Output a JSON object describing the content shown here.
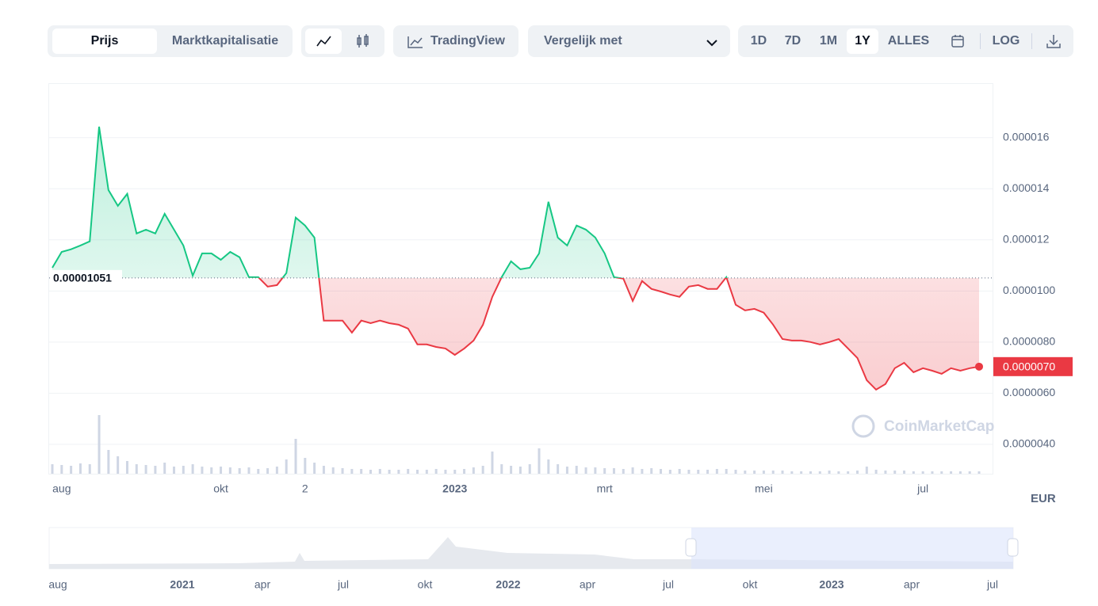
{
  "toolbar": {
    "tabs": [
      "Prijs",
      "Marktkapitalisatie"
    ],
    "tradingview": "TradingView",
    "compare": "Vergelijk met",
    "ranges": [
      "1D",
      "7D",
      "1M",
      "1Y",
      "ALLES"
    ],
    "log": "LOG"
  },
  "chart_data": {
    "type": "line",
    "categories": [
      null,
      "aug",
      null,
      null,
      null,
      null,
      null,
      null,
      null,
      null,
      null,
      null,
      null,
      null,
      null,
      null,
      null,
      null,
      "okt",
      null,
      null,
      null,
      null,
      null,
      null,
      null,
      null,
      "2",
      null,
      null,
      null,
      null,
      null,
      null,
      null,
      null,
      null,
      null,
      null,
      null,
      null,
      null,
      null,
      "2023",
      null,
      null,
      null,
      null,
      null,
      null,
      null,
      null,
      null,
      null,
      null,
      null,
      null,
      null,
      null,
      "mrt",
      null,
      null,
      null,
      null,
      null,
      null,
      null,
      null,
      null,
      null,
      null,
      null,
      null,
      null,
      null,
      null,
      "mei",
      null,
      null,
      null,
      null,
      null,
      null,
      null,
      null,
      null,
      null,
      null,
      null,
      null,
      null,
      null,
      null,
      "jul",
      null,
      null,
      null,
      null,
      null,
      null
    ],
    "values": [
      1.091e-05,
      1.153e-05,
      1.163e-05,
      1.178e-05,
      1.194e-05,
      1.643e-05,
      1.395e-05,
      1.333e-05,
      1.38e-05,
      1.225e-05,
      1.24e-05,
      1.225e-05,
      1.302e-05,
      1.24e-05,
      1.178e-05,
      1.06e-05,
      1.147e-05,
      1.147e-05,
      1.122e-05,
      1.153e-05,
      1.132e-05,
      1.054e-05,
      1.054e-05,
      1.017e-05,
      1.023e-05,
      1.07e-05,
      1.287e-05,
      1.256e-05,
      1.209e-05,
      8.84e-06,
      8.84e-06,
      8.84e-06,
      8.37e-06,
      8.84e-06,
      8.74e-06,
      8.84e-06,
      8.74e-06,
      8.68e-06,
      8.53e-06,
      7.91e-06,
      7.91e-06,
      7.81e-06,
      7.75e-06,
      7.5e-06,
      7.75e-06,
      8.06e-06,
      8.68e-06,
      9.77e-06,
      1.054e-05,
      1.116e-05,
      1.085e-05,
      1.091e-05,
      1.147e-05,
      1.349e-05,
      1.209e-05,
      1.178e-05,
      1.256e-05,
      1.24e-05,
      1.209e-05,
      1.147e-05,
      1.054e-05,
      1.048e-05,
      9.61e-06,
      1.039e-05,
      1.008e-05,
      9.98e-06,
      9.86e-06,
      9.77e-06,
      1.017e-05,
      1.023e-05,
      1.008e-05,
      1.008e-05,
      1.054e-05,
      9.46e-06,
      9.24e-06,
      9.3e-06,
      9.15e-06,
      8.68e-06,
      8.12e-06,
      8.06e-06,
      8.06e-06,
      8e-06,
      7.91e-06,
      8e-06,
      8.12e-06,
      7.75e-06,
      7.38e-06,
      6.51e-06,
      6.14e-06,
      6.36e-06,
      6.98e-06,
      7.19e-06,
      6.82e-06,
      6.98e-06,
      6.88e-06,
      6.76e-06,
      6.98e-06,
      6.88e-06,
      6.98e-06,
      7.04e-06
    ],
    "colors": {
      "up": "#16c784",
      "down": "#ea3943"
    },
    "baseline": 1.051e-05,
    "current": {
      "value": 7.04e-06,
      "label": "0.0000070"
    },
    "unit": "EUR",
    "ylim": [
      2.85e-06,
      1.81e-05
    ],
    "yticks": [
      1.6e-05,
      1.4e-05,
      1.2e-05,
      {
        "value": 1e-05,
        "label": "0.0000100"
      },
      {
        "value": 8e-06,
        "label": "0.0000080"
      },
      {
        "value": 6e-06,
        "label": "0.0000060"
      },
      {
        "value": 4e-06,
        "label": "0.0000040"
      }
    ],
    "grid": true,
    "volume": [
      12,
      11,
      10,
      13,
      12,
      74,
      30,
      22,
      16,
      12,
      11,
      10,
      14,
      9,
      10,
      12,
      9,
      8,
      9,
      8,
      7,
      8,
      6,
      7,
      9,
      18,
      44,
      20,
      14,
      10,
      8,
      7,
      6,
      6,
      5,
      6,
      5,
      5,
      6,
      5,
      5,
      6,
      5,
      5,
      6,
      8,
      10,
      28,
      12,
      10,
      9,
      12,
      32,
      18,
      12,
      9,
      10,
      8,
      8,
      7,
      7,
      6,
      8,
      6,
      7,
      6,
      5,
      6,
      5,
      5,
      5,
      6,
      6,
      5,
      4,
      4,
      4,
      4,
      4,
      3,
      3,
      3,
      3,
      4,
      3,
      3,
      4,
      9,
      5,
      4,
      4,
      4,
      3,
      3,
      3,
      3,
      3,
      3,
      3,
      3
    ],
    "volume_lim": [
      0,
      100
    ],
    "watermark": "CoinMarketCap"
  },
  "navigator": {
    "labels": [
      "aug",
      "2021",
      "apr",
      "jul",
      "okt",
      "2022",
      "apr",
      "jul",
      "okt",
      "2023",
      "apr",
      "jul"
    ]
  }
}
